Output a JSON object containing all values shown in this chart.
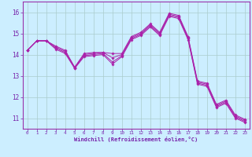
{
  "background_color": "#cceeff",
  "line_color": "#aa22aa",
  "grid_color": "#aacccc",
  "spine_color": "#9933aa",
  "tick_color": "#7722aa",
  "ylim": [
    10.5,
    16.5
  ],
  "xlim": [
    -0.5,
    23.5
  ],
  "yticks": [
    11,
    12,
    13,
    14,
    15,
    16
  ],
  "xticks": [
    0,
    1,
    2,
    3,
    4,
    5,
    6,
    7,
    8,
    9,
    10,
    11,
    12,
    13,
    14,
    15,
    16,
    17,
    18,
    19,
    20,
    21,
    22,
    23
  ],
  "xlabel": "Windchill (Refroidissement éolien,°C)",
  "series": [
    [
      14.2,
      14.65,
      14.65,
      14.4,
      14.2,
      13.4,
      14.05,
      14.1,
      14.1,
      14.05,
      14.05,
      14.85,
      15.05,
      15.45,
      15.05,
      15.95,
      15.85,
      14.85,
      12.75,
      12.65,
      11.65,
      11.85,
      11.15,
      10.95
    ],
    [
      14.2,
      14.65,
      14.65,
      14.35,
      14.15,
      13.4,
      14.0,
      14.05,
      14.1,
      13.85,
      14.0,
      14.8,
      15.0,
      15.4,
      15.0,
      15.9,
      15.8,
      14.8,
      12.7,
      12.6,
      11.6,
      11.8,
      11.1,
      10.9
    ],
    [
      14.2,
      14.65,
      14.65,
      14.3,
      14.1,
      13.35,
      13.95,
      14.0,
      14.05,
      13.65,
      13.95,
      14.75,
      14.95,
      15.35,
      14.95,
      15.85,
      15.75,
      14.75,
      12.65,
      12.55,
      11.55,
      11.75,
      11.05,
      10.85
    ],
    [
      14.2,
      14.65,
      14.65,
      14.25,
      14.05,
      13.35,
      13.9,
      13.95,
      14.0,
      13.55,
      13.9,
      14.7,
      14.9,
      15.3,
      14.9,
      15.8,
      15.7,
      14.7,
      12.6,
      12.5,
      11.5,
      11.7,
      11.0,
      10.8
    ]
  ]
}
